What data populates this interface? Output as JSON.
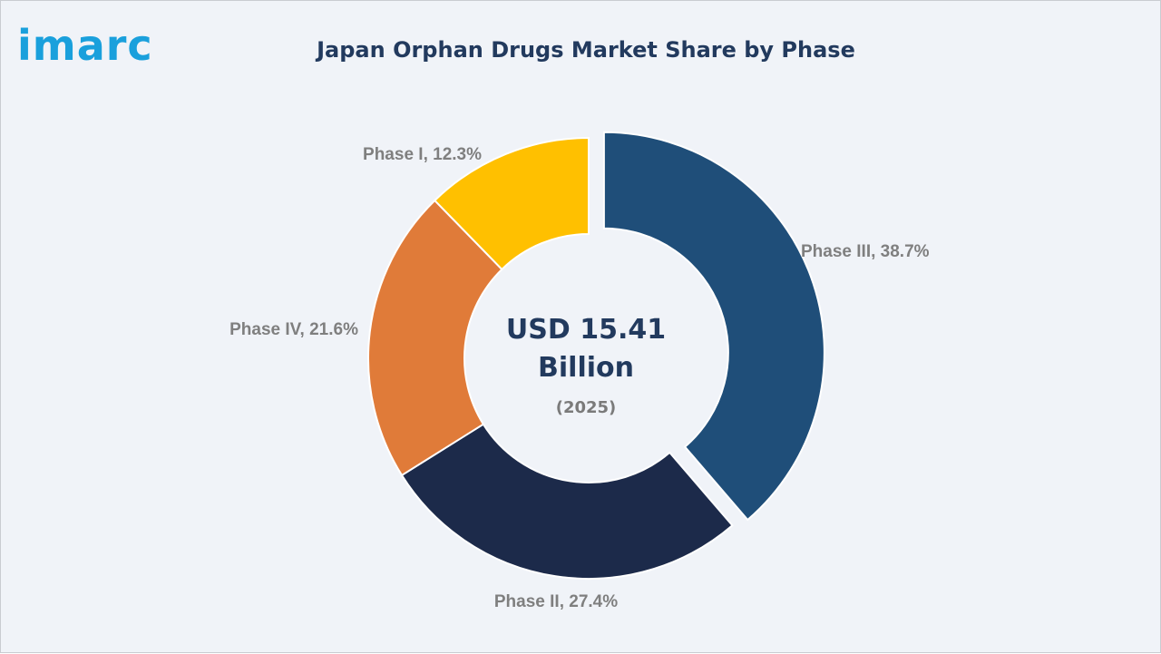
{
  "logo": {
    "text": "imarc"
  },
  "center": {
    "value_line1": "USD 15.41",
    "value_line2": "Billion",
    "year": "(2025)"
  },
  "chart_data": {
    "type": "pie",
    "title": "Japan Orphan Drugs Market Share by Phase",
    "donut": true,
    "unit": "%",
    "slices": [
      {
        "label": "Phase III",
        "value": 38.7,
        "color": "#1f4e79",
        "exploded": true
      },
      {
        "label": "Phase II",
        "value": 27.4,
        "color": "#1c2a4a",
        "exploded": false
      },
      {
        "label": "Phase IV",
        "value": 21.6,
        "color": "#e07b39",
        "exploded": false
      },
      {
        "label": "Phase I",
        "value": 12.3,
        "color": "#ffc000",
        "exploded": false
      }
    ]
  }
}
